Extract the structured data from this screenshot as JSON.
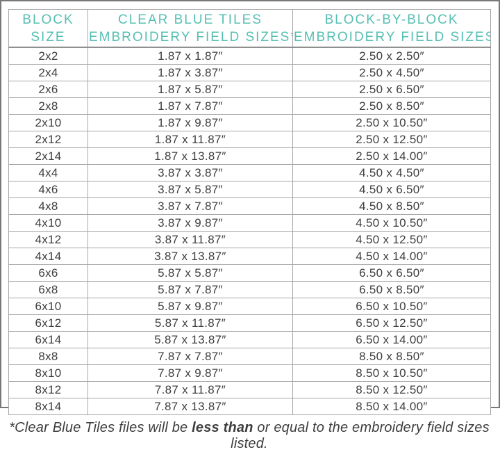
{
  "colors": {
    "header_teal": "#55bfb3",
    "body_text": "#3e3e3e",
    "grid_line": "#a6a6a6",
    "frame_border": "#787878",
    "background": "#ffffff"
  },
  "table": {
    "headers": [
      {
        "line1": "BLOCK",
        "line2": "SIZE"
      },
      {
        "line1": "CLEAR BLUE TILES",
        "line2": "EMBROIDERY FIELD SIZES*"
      },
      {
        "line1": "BLOCK-BY-BLOCK",
        "line2": "EMBROIDERY FIELD SIZES"
      }
    ],
    "rows": [
      {
        "block_size": "2x2",
        "clear_blue_tiles": "1.87 x 1.87″",
        "block_by_block": "2.50 x 2.50″"
      },
      {
        "block_size": "2x4",
        "clear_blue_tiles": "1.87 x 3.87″",
        "block_by_block": "2.50 x 4.50″"
      },
      {
        "block_size": "2x6",
        "clear_blue_tiles": "1.87 x 5.87″",
        "block_by_block": "2.50 x 6.50″"
      },
      {
        "block_size": "2x8",
        "clear_blue_tiles": "1.87 x 7.87″",
        "block_by_block": "2.50 x 8.50″"
      },
      {
        "block_size": "2x10",
        "clear_blue_tiles": "1.87 x 9.87″",
        "block_by_block": "2.50 x 10.50″"
      },
      {
        "block_size": "2x12",
        "clear_blue_tiles": "1.87 x 11.87″",
        "block_by_block": "2.50 x 12.50″"
      },
      {
        "block_size": "2x14",
        "clear_blue_tiles": "1.87 x 13.87″",
        "block_by_block": "2.50 x 14.00″"
      },
      {
        "block_size": "4x4",
        "clear_blue_tiles": "3.87 x 3.87″",
        "block_by_block": "4.50 x 4.50″"
      },
      {
        "block_size": "4x6",
        "clear_blue_tiles": "3.87 x 5.87″",
        "block_by_block": "4.50 x 6.50″"
      },
      {
        "block_size": "4x8",
        "clear_blue_tiles": "3.87 x 7.87″",
        "block_by_block": "4.50 x 8.50″"
      },
      {
        "block_size": "4x10",
        "clear_blue_tiles": "3.87 x 9.87″",
        "block_by_block": "4.50 x 10.50″"
      },
      {
        "block_size": "4x12",
        "clear_blue_tiles": "3.87 x 11.87″",
        "block_by_block": "4.50 x 12.50″"
      },
      {
        "block_size": "4x14",
        "clear_blue_tiles": "3.87 x 13.87″",
        "block_by_block": "4.50 x 14.00″"
      },
      {
        "block_size": "6x6",
        "clear_blue_tiles": "5.87 x 5.87″",
        "block_by_block": "6.50 x 6.50″"
      },
      {
        "block_size": "6x8",
        "clear_blue_tiles": "5.87 x 7.87″",
        "block_by_block": "6.50 x 8.50″"
      },
      {
        "block_size": "6x10",
        "clear_blue_tiles": "5.87 x 9.87″",
        "block_by_block": "6.50 x 10.50″"
      },
      {
        "block_size": "6x12",
        "clear_blue_tiles": "5.87 x 11.87″",
        "block_by_block": "6.50 x 12.50″"
      },
      {
        "block_size": "6x14",
        "clear_blue_tiles": "5.87 x 13.87″",
        "block_by_block": "6.50 x 14.00″"
      },
      {
        "block_size": "8x8",
        "clear_blue_tiles": "7.87 x 7.87″",
        "block_by_block": "8.50 x 8.50″"
      },
      {
        "block_size": "8x10",
        "clear_blue_tiles": "7.87 x 9.87″",
        "block_by_block": "8.50 x 10.50″"
      },
      {
        "block_size": "8x12",
        "clear_blue_tiles": "7.87 x 11.87″",
        "block_by_block": "8.50 x 12.50″"
      },
      {
        "block_size": "8x14",
        "clear_blue_tiles": "7.87 x 13.87″",
        "block_by_block": "8.50 x 14.00″"
      }
    ]
  },
  "footnote": {
    "prefix": "*Clear Blue Tiles files will be ",
    "emphasis": "less than",
    "suffix": " or equal to the embroidery field sizes listed."
  }
}
